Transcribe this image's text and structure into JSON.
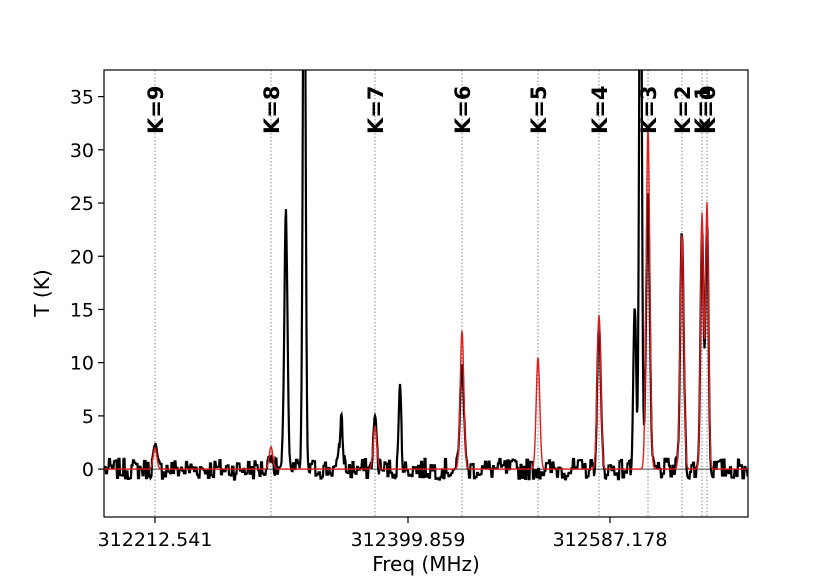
{
  "chart_data": {
    "type": "line",
    "xlabel": "Freq (MHz)",
    "ylabel": "T (K)",
    "xlim": [
      312155,
      312765
    ],
    "ylim": [
      -4.5,
      37.5
    ],
    "grid": false,
    "x_tick_values": [
      312212.541,
      312399.859,
      312587.178
    ],
    "x_tick_labels": [
      "312212.541",
      "312399.859",
      "312587.178"
    ],
    "y_tick_values": [
      0,
      5,
      10,
      15,
      20,
      25,
      30,
      35
    ],
    "y_tick_labels": [
      "0",
      "5",
      "10",
      "15",
      "20",
      "25",
      "30",
      "35"
    ],
    "zero_line": true,
    "k_markers": [
      {
        "label": "K=9",
        "freq": 312262.6
      },
      {
        "label": "K=8",
        "freq": 312371.6
      },
      {
        "label": "K=7",
        "freq": 312470.8
      },
      {
        "label": "K=6",
        "freq": 312553.6
      },
      {
        "label": "K=5",
        "freq": 312624.3
      },
      {
        "label": "K=4",
        "freq": 312682.9
      },
      {
        "label": "K=3",
        "freq": 312729.2
      },
      {
        "label": "K=2",
        "freq": 312761.2
      },
      {
        "label": "K=1",
        "freq": 312779.0
      },
      {
        "label": "K=0",
        "freq": 312784.3
      }
    ],
    "series": [
      {
        "color": "#000000",
        "width": 2.2,
        "noise": 0.75,
        "peaks": [
          {
            "x": 312262.6,
            "amp": 1.8,
            "sigma": 1.8
          },
          {
            "x": 312309.5,
            "amp": 23.5,
            "sigma": 1.6
          },
          {
            "x": 312323.0,
            "amp": 60,
            "sigma": 1.3
          },
          {
            "x": 312371.6,
            "amp": 1.8,
            "sigma": 1.8
          },
          {
            "x": 312350.5,
            "amp": 4.8,
            "sigma": 1.6
          },
          {
            "x": 312394.0,
            "amp": 7.5,
            "sigma": 1.3
          },
          {
            "x": 312470.8,
            "amp": 4.5,
            "sigma": 1.8
          },
          {
            "x": 312553.6,
            "amp": 10.5,
            "sigma": 1.8
          },
          {
            "x": 312619.0,
            "amp": 16.0,
            "sigma": 1.4
          },
          {
            "x": 312626.5,
            "amp": 60,
            "sigma": 1.3
          },
          {
            "x": 312682.9,
            "amp": 13.0,
            "sigma": 1.8
          },
          {
            "x": 312729.2,
            "amp": 25.0,
            "sigma": 1.8
          },
          {
            "x": 312761.2,
            "amp": 22.0,
            "sigma": 1.8
          },
          {
            "x": 312779.0,
            "amp": 23.0,
            "sigma": 1.5
          },
          {
            "x": 312784.3,
            "amp": 23.5,
            "sigma": 1.5
          }
        ]
      },
      {
        "color": "#e41a1c",
        "width": 1.4,
        "noise": 0,
        "peaks": [
          {
            "x": 312262.6,
            "amp": 2.0,
            "sigma": 1.8
          },
          {
            "x": 312371.6,
            "amp": 2.1,
            "sigma": 1.8
          },
          {
            "x": 312470.8,
            "amp": 4.0,
            "sigma": 1.8
          },
          {
            "x": 312553.6,
            "amp": 13.0,
            "sigma": 1.8
          },
          {
            "x": 312624.3,
            "amp": 10.5,
            "sigma": 1.8
          },
          {
            "x": 312682.9,
            "amp": 14.5,
            "sigma": 1.8
          },
          {
            "x": 312729.2,
            "amp": 32.0,
            "sigma": 1.8
          },
          {
            "x": 312761.2,
            "amp": 22.0,
            "sigma": 1.8
          },
          {
            "x": 312779.0,
            "amp": 24.0,
            "sigma": 1.5
          },
          {
            "x": 312784.3,
            "amp": 25.0,
            "sigma": 1.5
          }
        ]
      }
    ]
  }
}
